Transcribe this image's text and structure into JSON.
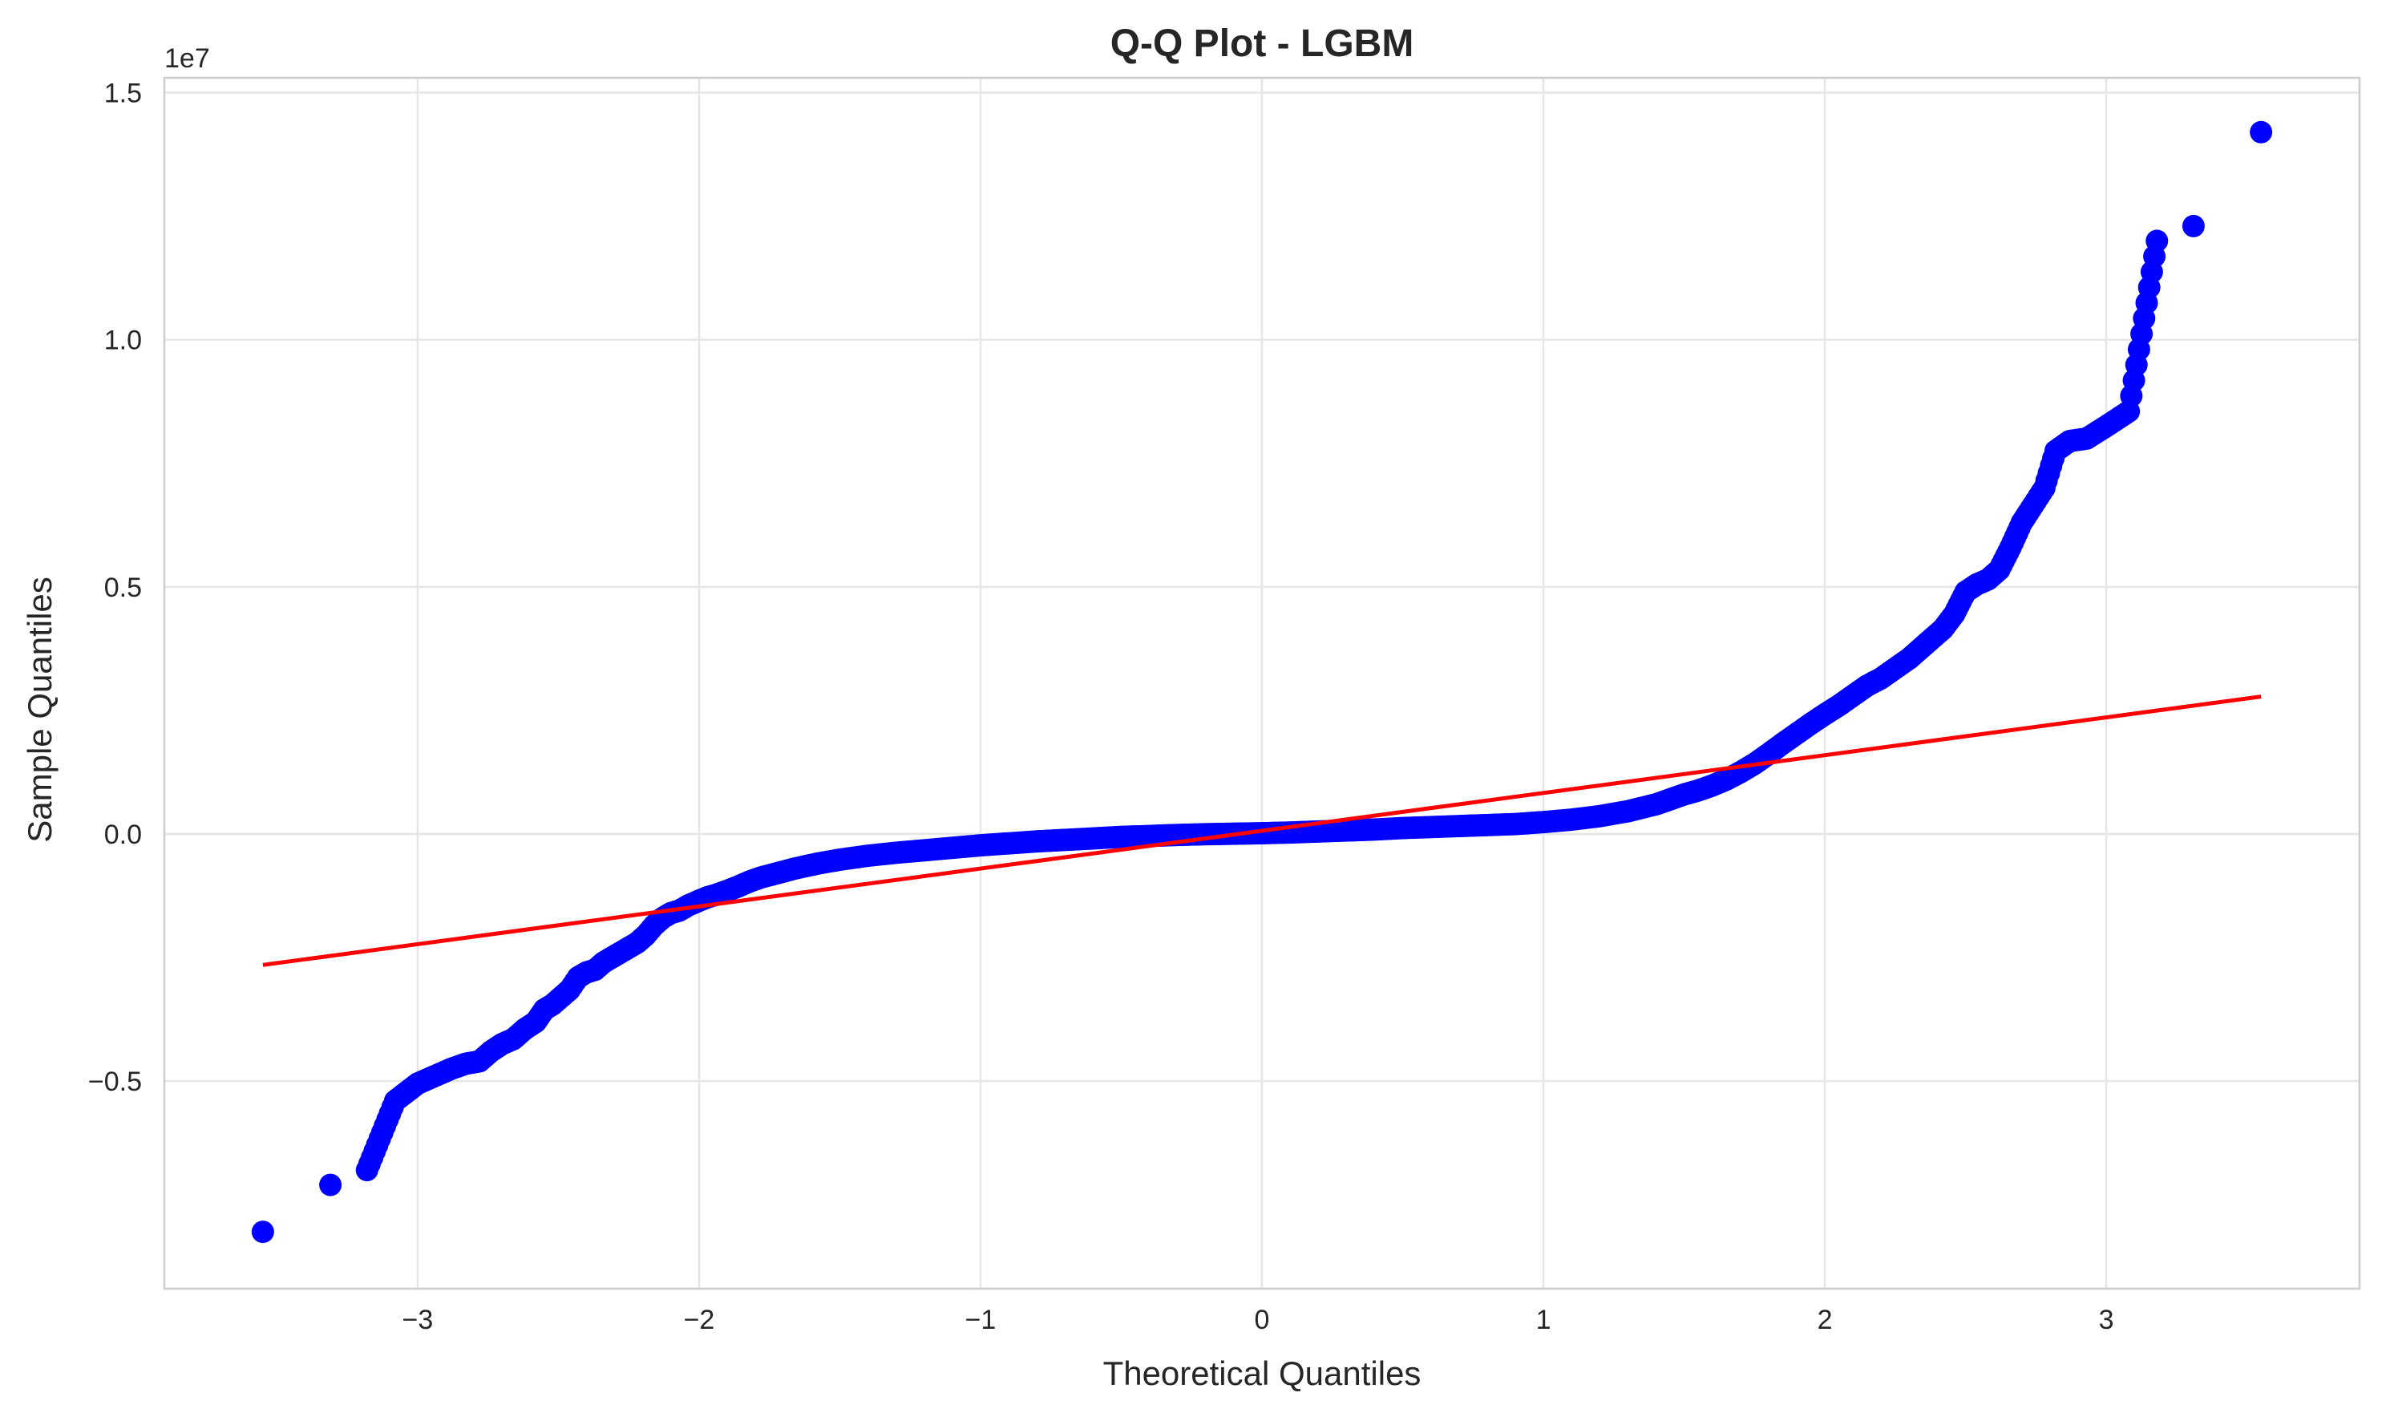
{
  "chart_data": {
    "type": "scatter",
    "title": "Q-Q Plot - LGBM",
    "xlabel": "Theoretical Quantiles",
    "ylabel": "Sample Quantiles",
    "y_offset_text": "1e7",
    "y_scale_factor": 10000000,
    "xlim": [
      -3.9,
      3.9
    ],
    "ylim": [
      -9200000,
      15300000
    ],
    "x_ticks": [
      -3,
      -2,
      -1,
      0,
      1,
      2,
      3
    ],
    "x_tick_labels": [
      "−3",
      "−2",
      "−1",
      "0",
      "1",
      "2",
      "3"
    ],
    "y_ticks": [
      -5000000,
      0,
      5000000,
      10000000,
      15000000
    ],
    "y_tick_labels": [
      "−0.5",
      "0.0",
      "0.5",
      "1.0",
      "1.5"
    ],
    "grid": true,
    "colors": {
      "points": "#0000ff",
      "line": "#ff0000",
      "grid": "#e6e6e6",
      "spine": "#cccccc"
    },
    "series": [
      {
        "kind": "scatter",
        "x": [
          -3.55,
          -3.31,
          -3.18,
          -3.08,
          -3.0,
          -2.94,
          -2.88,
          -2.83,
          -2.78,
          -2.74,
          -2.7,
          -2.66,
          -2.62,
          -2.58,
          -2.55,
          -2.52,
          -2.49,
          -2.46,
          -2.43,
          -2.4,
          -2.37,
          -2.34,
          -2.31,
          -2.28,
          -2.25,
          -2.22,
          -2.19,
          -2.16,
          -2.13,
          -2.1,
          -2.07,
          -2.04,
          -2.0,
          -1.97,
          -1.94,
          -1.9,
          -1.86,
          -1.82,
          -1.78,
          -1.74,
          -1.7,
          -1.66,
          -1.62,
          -1.58,
          -1.54,
          -1.5,
          -1.4,
          -1.3,
          -1.2,
          -1.1,
          -1.0,
          -0.9,
          -0.8,
          -0.7,
          -0.6,
          -0.5,
          -0.4,
          -0.3,
          -0.2,
          -0.1,
          0.0,
          0.1,
          0.2,
          0.3,
          0.4,
          0.5,
          0.6,
          0.7,
          0.8,
          0.9,
          1.0,
          1.1,
          1.2,
          1.3,
          1.4,
          1.5,
          1.55,
          1.6,
          1.65,
          1.7,
          1.75,
          1.8,
          1.85,
          1.9,
          1.95,
          2.0,
          2.05,
          2.1,
          2.15,
          2.2,
          2.25,
          2.3,
          2.34,
          2.38,
          2.42,
          2.46,
          2.5,
          2.54,
          2.58,
          2.62,
          2.66,
          2.7,
          2.74,
          2.78,
          2.82,
          2.87,
          2.93,
          3.0,
          3.08,
          3.18,
          3.31,
          3.55
        ],
        "y": [
          -8050000,
          -7100000,
          -6800000,
          -5400000,
          -5050000,
          -4900000,
          -4750000,
          -4650000,
          -4600000,
          -4400000,
          -4250000,
          -4150000,
          -3950000,
          -3800000,
          -3550000,
          -3450000,
          -3300000,
          -3150000,
          -2900000,
          -2800000,
          -2750000,
          -2600000,
          -2500000,
          -2400000,
          -2300000,
          -2200000,
          -2050000,
          -1850000,
          -1700000,
          -1600000,
          -1550000,
          -1450000,
          -1350000,
          -1280000,
          -1230000,
          -1150000,
          -1060000,
          -960000,
          -880000,
          -820000,
          -760000,
          -700000,
          -650000,
          -600000,
          -560000,
          -520000,
          -440000,
          -380000,
          -330000,
          -280000,
          -230000,
          -190000,
          -150000,
          -120000,
          -90000,
          -60000,
          -40000,
          -20000,
          -5000,
          5000,
          15000,
          30000,
          50000,
          70000,
          90000,
          120000,
          140000,
          160000,
          180000,
          200000,
          240000,
          290000,
          360000,
          460000,
          600000,
          800000,
          880000,
          980000,
          1100000,
          1250000,
          1420000,
          1620000,
          1830000,
          2030000,
          2230000,
          2420000,
          2600000,
          2800000,
          3000000,
          3150000,
          3350000,
          3550000,
          3750000,
          3950000,
          4150000,
          4450000,
          4900000,
          5050000,
          5150000,
          5350000,
          5800000,
          6300000,
          6650000,
          7000000,
          7750000,
          7950000,
          8000000,
          8250000,
          8550000,
          12000000,
          12300000,
          14200000
        ]
      },
      {
        "kind": "line",
        "x": [
          -3.55,
          3.55
        ],
        "y": [
          -2650000,
          2780000
        ]
      }
    ]
  }
}
